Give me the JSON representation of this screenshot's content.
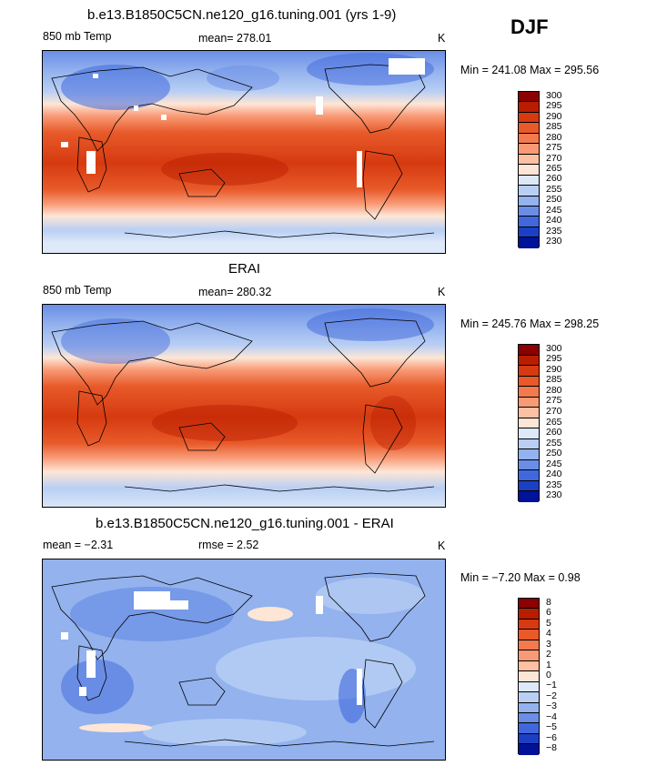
{
  "season": "DJF",
  "panel1": {
    "title": "b.e13.B1850C5CN.ne120_g16.tuning.001 (yrs 1-9)",
    "field": "850 mb Temp",
    "mean": "mean=  278.01",
    "units": "K",
    "minmax": "Min = 241.08  Max = 295.56"
  },
  "panel2": {
    "title": "ERAI",
    "field": "850 mb Temp",
    "mean": "mean=  280.32",
    "units": "K",
    "minmax": "Min = 245.76  Max = 298.25"
  },
  "panel3": {
    "title": "b.e13.B1850C5CN.ne120_g16.tuning.001 - ERAI",
    "mean": "mean =   −2.31",
    "rmse": "rmse =    2.52",
    "units": "K",
    "minmax": "Min =   −7.20  Max =    0.98"
  },
  "colorbar_abs": {
    "labels": [
      "300",
      "295",
      "290",
      "285",
      "280",
      "275",
      "270",
      "265",
      "260",
      "255",
      "250",
      "245",
      "240",
      "235",
      "230"
    ],
    "colors": [
      "#8b0000",
      "#b81d00",
      "#d63a10",
      "#e85a2a",
      "#f27a4e",
      "#f89a76",
      "#fcc0a2",
      "#fde6d6",
      "#dde8f8",
      "#b9cff4",
      "#93b2ee",
      "#6a8ee6",
      "#4068dc",
      "#1c40c4",
      "#00129a"
    ]
  },
  "colorbar_diff": {
    "labels": [
      "8",
      "6",
      "5",
      "4",
      "3",
      "2",
      "1",
      "0",
      "−1",
      "−2",
      "−3",
      "−4",
      "−5",
      "−6",
      "−8"
    ],
    "colors": [
      "#8b0000",
      "#b81d00",
      "#d63a10",
      "#e85a2a",
      "#f27a4e",
      "#f89a76",
      "#fcc0a2",
      "#fde6d6",
      "#dde8f8",
      "#b9cff4",
      "#93b2ee",
      "#6a8ee6",
      "#4068dc",
      "#1c40c4",
      "#00129a"
    ]
  }
}
